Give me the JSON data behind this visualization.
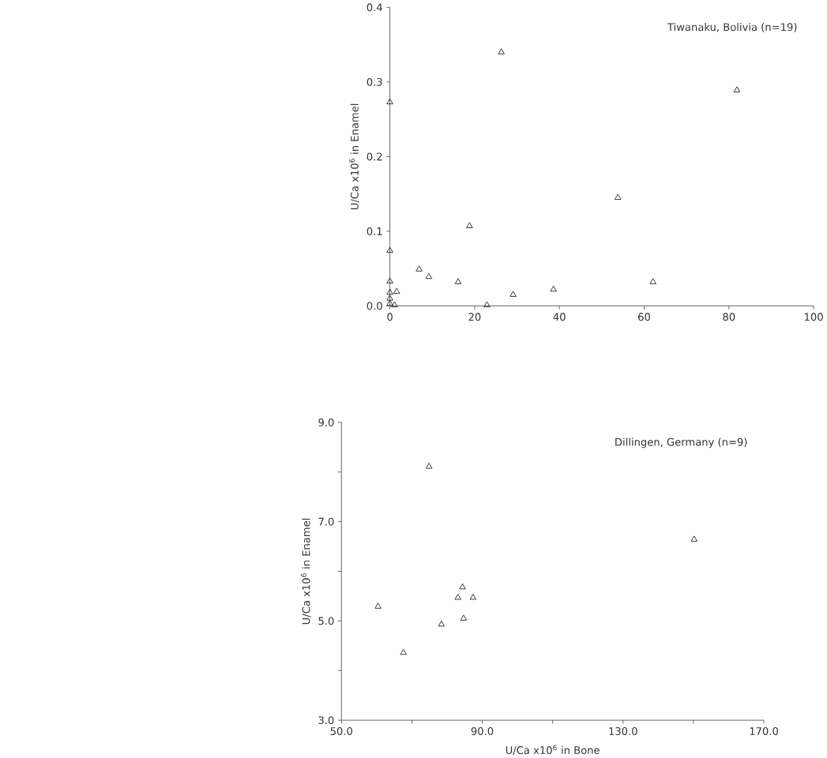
{
  "chart_data": [
    {
      "type": "scatter",
      "ylabel": "U/Ca x10$^{6}$ in Enamel",
      "annotations": [
        "Tiwanaku, Bolivia  (n=19)"
      ],
      "marker": "triangle",
      "color": "#333333",
      "x": [
        0,
        0,
        0,
        0,
        0,
        0,
        1.1,
        1.6,
        6.9,
        9.2,
        16.1,
        18.8,
        22.9,
        26.3,
        29.1,
        38.6,
        53.8,
        62.1,
        81.9
      ],
      "values": [
        0.273,
        0.074,
        0.033,
        0.018,
        0.01,
        0.003,
        0.001,
        0.019,
        0.049,
        0.039,
        0.032,
        0.107,
        0.001,
        0.34,
        0.015,
        0.022,
        0.145,
        0.032,
        0.289
      ],
      "xlim": [
        0,
        100
      ],
      "ylim": [
        0,
        0.4
      ],
      "xticks": [
        0,
        20,
        40,
        60,
        80,
        100
      ],
      "yticks": [
        {
          "value": 0,
          "label": "0.0"
        },
        {
          "value": 0.1,
          "label": "0.1"
        },
        {
          "value": 0.2,
          "label": "0.2"
        },
        {
          "value": 0.3,
          "label": "0.3"
        },
        {
          "value": 0.4,
          "label": "0.4"
        }
      ]
    },
    {
      "type": "scatter",
      "xlabel": "U/Ca x10$^{6}$ in Bone",
      "ylabel": "U/Ca x10$^{6}$ in Enamel",
      "annotations": [
        "Dillingen, Germany  (n=9)"
      ],
      "marker": "triangle",
      "color": "#333333",
      "x": [
        60.4,
        67.6,
        74.9,
        78.4,
        83.1,
        84.4,
        84.7,
        87.4,
        150.2
      ],
      "values": [
        5.29,
        4.36,
        8.11,
        4.93,
        5.47,
        5.68,
        5.05,
        5.47,
        6.64
      ],
      "xlim": [
        50,
        170
      ],
      "ylim": [
        3,
        9
      ],
      "xticks": [
        {
          "value": 50,
          "label": "50.0"
        },
        {
          "value": 70,
          "label": null
        },
        {
          "value": 90,
          "label": "90.0"
        },
        {
          "value": 110,
          "label": null
        },
        {
          "value": 130,
          "label": "130.0"
        },
        {
          "value": 150,
          "label": null
        },
        {
          "value": 170,
          "label": "170.0"
        }
      ],
      "yticks": [
        {
          "value": 3,
          "label": "3.0"
        },
        {
          "value": 4,
          "label": null
        },
        {
          "value": 5,
          "label": "5.0"
        },
        {
          "value": 6,
          "label": null
        },
        {
          "value": 7,
          "label": "7.0"
        },
        {
          "value": 8,
          "label": null
        },
        {
          "value": 9,
          "label": "9.0"
        }
      ]
    }
  ]
}
